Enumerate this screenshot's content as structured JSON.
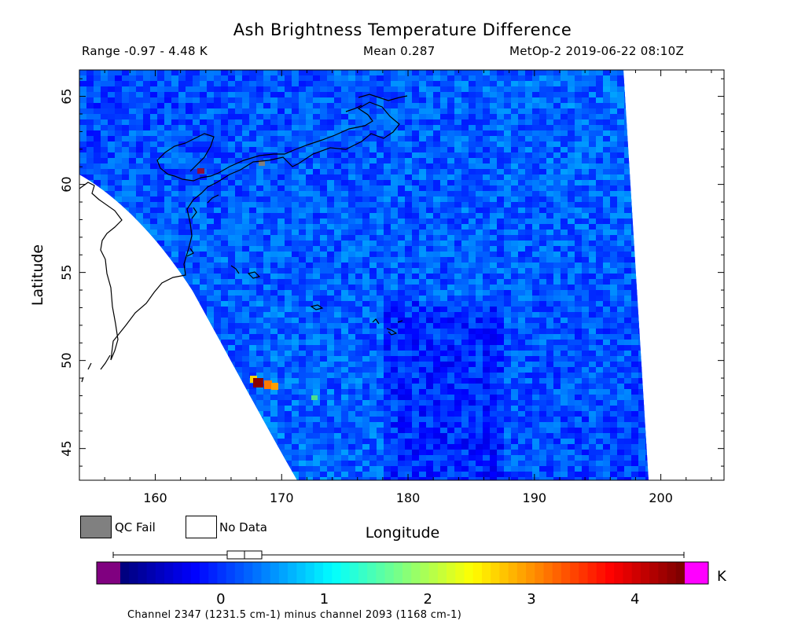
{
  "title": "Ash Brightness Temperature Difference",
  "stats": {
    "range": "Range -0.97 - 4.48 K",
    "mean": "Mean 0.287",
    "satellite_time": "MetOp-2 2019-06-22 08:10Z"
  },
  "axes": {
    "x_label": "Longitude",
    "y_label": "Latitude",
    "x_ticks": [
      "160",
      "170",
      "180",
      "190",
      "200"
    ],
    "y_ticks": [
      "65",
      "60",
      "55",
      "50",
      "45"
    ],
    "x_range": [
      154,
      205
    ],
    "y_range": [
      43.2,
      66.5
    ]
  },
  "legend": {
    "qc_fail": "QC Fail",
    "no_data": "No Data",
    "qc_fail_color": "#808080",
    "no_data_color": "#ffffff"
  },
  "colorbar": {
    "ticks": [
      "0",
      "1",
      "2",
      "3",
      "4"
    ],
    "unit": "K",
    "range": [
      -0.97,
      4.48
    ],
    "below_color": "#800080",
    "above_color": "#ff00ff",
    "colormap": "jet"
  },
  "footer": "Channel 2347 (1231.5 cm-1) minus channel 2093 (1168 cm-1)",
  "colors": {
    "background": "#2a55e8",
    "coast": "#000000"
  }
}
